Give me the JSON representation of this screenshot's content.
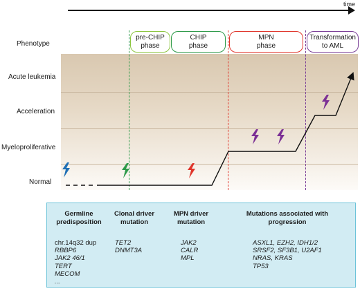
{
  "time_label": "time",
  "phenotype_label": "Phenotype",
  "phases": [
    {
      "label": "pre-CHIP\nphase",
      "color": "#8cc63f"
    },
    {
      "label": "CHIP\nphase",
      "color": "#2e9a4a"
    },
    {
      "label": "MPN\nphase",
      "color": "#e0352b"
    },
    {
      "label": "Transformation\nto AML",
      "color": "#7b3f98"
    }
  ],
  "y_axis_levels": [
    "Acute leukemia",
    "Acceleration",
    "Myeloproliferative",
    "Normal"
  ],
  "lightning_colors": {
    "germline": "#1f6fb5",
    "clonal": "#2e9a4a",
    "mpn": "#e0352b",
    "progression": "#7b2f95"
  },
  "table": {
    "headers": [
      "Germline\npredisposition",
      "Clonal driver\nmutation",
      "MPN driver\nmutation",
      "Mutations associated with\nprogression"
    ],
    "germline": [
      "chr.14q32 dup",
      "RBBP6",
      "JAK2 46/1",
      "TERT",
      "MECOM",
      "..."
    ],
    "clonal": [
      "TET2",
      "DNMT3A"
    ],
    "mpn": [
      "JAK2",
      "CALR",
      "MPL"
    ],
    "progression": [
      "ASXL1, EZH2, IDH1/2",
      "SRSF2, SF3B1, U2AF1",
      "NRAS, KRAS",
      "TP53"
    ]
  }
}
